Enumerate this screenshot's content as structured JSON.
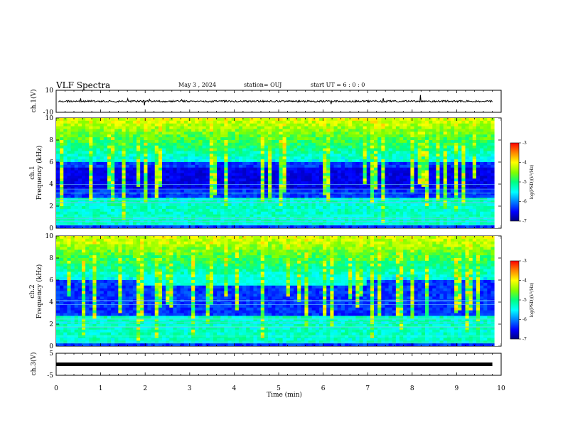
{
  "header": {
    "title": "VLF Spectra",
    "date": "May 3 , 2024",
    "station": "station= OUJ",
    "start": "start UT = 6 : 0 : 0"
  },
  "chart_data": [
    {
      "type": "line",
      "panel": "ch1-waveform",
      "ylabel": "ch.1(V)",
      "ylim": [
        -10,
        10
      ],
      "yticks": [
        "10",
        "-10"
      ],
      "baseline_v": 0
    },
    {
      "type": "heatmap",
      "panel": "ch1-spectrogram",
      "ylabel": "ch.1\nFrequency (kHz)",
      "ylabel_channel": "ch.1",
      "ylabel_quantity": "Frequency (kHz)",
      "ylim": [
        0,
        10
      ],
      "yticks": [
        "0",
        "2",
        "4",
        "6",
        "8",
        "10"
      ],
      "colorbar": {
        "label": "log(PSD)(V²/Hz)",
        "range": [
          -7,
          -3
        ],
        "ticks": [
          "-3",
          "-4",
          "-5",
          "-6",
          "-7"
        ]
      },
      "features": {
        "persistent_band_khz": [
          0.3,
          2.8
        ],
        "dark_gap_khz": [
          3.5,
          5.5
        ]
      }
    },
    {
      "type": "heatmap",
      "panel": "ch2-spectrogram",
      "ylabel": "ch.2\nFrequency (kHz)",
      "ylabel_channel": "ch.2",
      "ylabel_quantity": "Frequency (kHz)",
      "ylim": [
        0,
        10
      ],
      "yticks": [
        "0",
        "2",
        "4",
        "6",
        "8",
        "10"
      ],
      "colorbar": {
        "label": "log(PSD)(V²/Hz)",
        "range": [
          -7,
          -3
        ],
        "ticks": [
          "-3",
          "-4",
          "-5",
          "-6",
          "-7"
        ]
      },
      "features": {
        "persistent_band_khz": [
          0.3,
          2.8
        ],
        "chorus_band_khz": [
          5.5,
          6.5
        ],
        "chorus_time_min": [
          2,
          7
        ]
      }
    },
    {
      "type": "line",
      "panel": "ch3-waveform",
      "ylabel": "ch.3(V)",
      "ylim": [
        -5,
        5
      ],
      "yticks": [
        "5",
        "-5"
      ],
      "baseline_v": 0
    }
  ],
  "x_axis": {
    "xlabel": "Time (min)",
    "xlim": [
      0,
      10
    ],
    "xticks": [
      "0",
      "1",
      "2",
      "3",
      "4",
      "5",
      "6",
      "7",
      "8",
      "9",
      "10"
    ],
    "data_end_min": 9.85
  },
  "colors": {
    "low": "#00007f",
    "mid": "#00ff80",
    "high": "#ff0000",
    "axes": "#000000"
  }
}
